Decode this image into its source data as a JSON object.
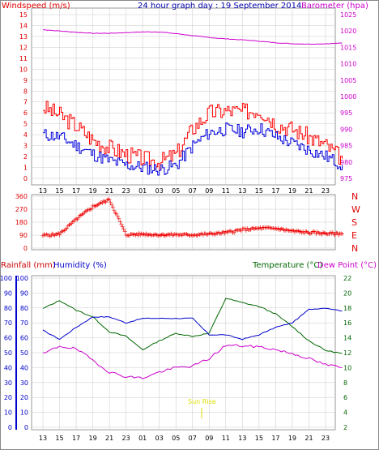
{
  "title": "24 hour graph day : 19 September 2014",
  "colors": {
    "wind": "#e00000",
    "gust": "#ff0000",
    "avgwind": "#0000dd",
    "baro": "#cc00cc",
    "dir": "#ee0000",
    "temp": "#006600",
    "dew": "#008800",
    "humidity": "#cc00cc",
    "rainfall": "#0000cc",
    "sunrise": "#dddd00",
    "grid": "#c8c8c8"
  },
  "panels": {
    "wind": {
      "left_label": "Windspeed (m/s)",
      "right_label": "Barometer (hpa)",
      "left_ticks": [
        "0",
        "1",
        "2",
        "3",
        "4",
        "5",
        "6",
        "7",
        "8",
        "9",
        "10",
        "11",
        "12",
        "13",
        "14",
        "15"
      ],
      "right_ticks": [
        "975",
        "980",
        "985",
        "990",
        "995",
        "1000",
        "1005",
        "1010",
        "1015",
        "1020",
        "1025"
      ]
    },
    "direction": {
      "left_ticks": [
        "0",
        "90",
        "180",
        "270",
        "360"
      ],
      "right_ticks": [
        "N",
        "E",
        "S",
        "W",
        "N"
      ]
    },
    "temp": {
      "label_rain": "Rainfall (mm)",
      "label_humidity": "Humidity (%)",
      "label_temp": "Temperature (°C)",
      "label_dew": "Dew Point (°C)",
      "rain_ticks": [
        "0",
        "10",
        "20",
        "30",
        "40",
        "50",
        "60",
        "70",
        "80",
        "90",
        "100"
      ],
      "humidity_ticks": [
        "0",
        "10",
        "20",
        "30",
        "40",
        "50",
        "60",
        "70",
        "80",
        "90",
        "100"
      ],
      "temp_ticks": [
        "2",
        "4",
        "6",
        "8",
        "10",
        "12",
        "14",
        "16",
        "18",
        "20",
        "22"
      ],
      "annotation": "Sun Rise"
    }
  },
  "x_ticks": [
    "13",
    "15",
    "17",
    "19",
    "21",
    "23",
    "01",
    "03",
    "05",
    "07",
    "09",
    "11",
    "13",
    "15",
    "17",
    "19",
    "21",
    "23"
  ],
  "chart_data": [
    {
      "type": "line",
      "title": "24 hour graph day : 19 September 2014",
      "ylabel": "Windspeed (m/s)",
      "ylim": [
        0,
        15
      ],
      "y2label": "Barometer (hpa)",
      "y2lim": [
        975,
        1025
      ],
      "series": [
        {
          "name": "Windspeed (m/s)",
          "values": [
            6.5,
            5.8,
            4.8,
            3.5,
            2.8,
            2.2,
            1.8,
            1.5,
            2.2,
            4.6,
            6.0,
            6.2,
            6.1,
            6.3,
            5.0,
            4.5,
            3.8,
            3.0,
            1.8
          ]
        },
        {
          "name": "",
          "values": [
            4.0,
            3.8,
            3.0,
            2.2,
            1.6,
            1.2,
            1.0,
            0.8,
            1.2,
            3.0,
            4.2,
            4.5,
            4.3,
            4.6,
            3.8,
            3.2,
            2.6,
            2.0,
            1.2
          ]
        },
        {
          "name": "Barometer (hpa)",
          "values": [
            1020.4,
            1020.0,
            1019.6,
            1019.3,
            1019.3,
            1019.5,
            1019.7,
            1019.7,
            1019.2,
            1018.6,
            1018.0,
            1017.6,
            1017.3,
            1016.9,
            1016.4,
            1016.1,
            1016.0,
            1016.1,
            1016.3
          ]
        }
      ]
    },
    {
      "type": "scatter",
      "ylabel": "Wind direction",
      "ylim": [
        0,
        360
      ],
      "series": [
        {
          "name": "",
          "values": [
            90,
            100,
            200,
            290,
            340,
            95,
            100,
            95,
            95,
            95,
            100,
            110,
            130,
            140,
            140,
            120,
            110,
            105,
            100
          ]
        }
      ]
    },
    {
      "type": "line",
      "ylabel": "Humidity (%)",
      "ylim": [
        0,
        100
      ],
      "y2label": "Temperature (°C)",
      "y2lim": [
        2,
        22
      ],
      "series": [
        {
          "name": "Temperature (°C)",
          "values": [
            17.9,
            19.0,
            17.7,
            16.8,
            14.8,
            14.2,
            12.4,
            13.6,
            14.6,
            14.2,
            14.6,
            19.3,
            18.7,
            18.2,
            17.2,
            15.5,
            13.6,
            12.3,
            11.9
          ]
        },
        {
          "name": "Dew Point (°C)",
          "values": [
            11.8,
            12.9,
            12.5,
            11.0,
            9.4,
            8.8,
            8.6,
            9.4,
            10.0,
            10.2,
            11.2,
            13.0,
            12.9,
            12.8,
            12.4,
            11.9,
            11.2,
            10.4,
            10.0
          ]
        },
        {
          "name": "Humidity (%)",
          "values": [
            65,
            59,
            67,
            74,
            74,
            70,
            73,
            73,
            73,
            73,
            62,
            62,
            59,
            62,
            67,
            70,
            79,
            80,
            78
          ]
        },
        {
          "name": "Rainfall (mm)",
          "values": [
            0,
            0,
            0,
            0,
            0,
            0,
            0,
            0,
            0,
            0,
            0,
            0,
            0,
            0,
            0,
            0,
            0,
            0,
            0
          ]
        }
      ]
    }
  ]
}
